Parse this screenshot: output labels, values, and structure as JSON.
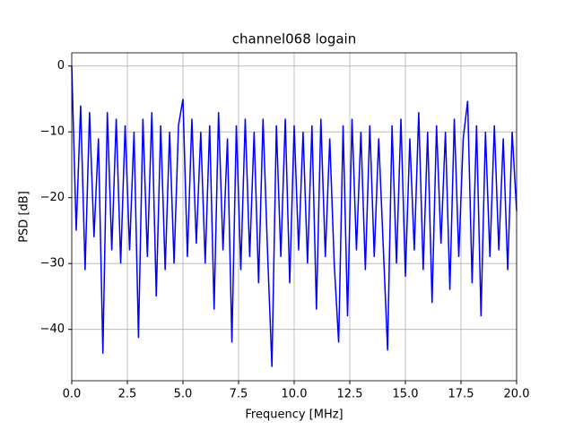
{
  "chart_data": {
    "type": "line",
    "title": "channel068 logain",
    "x_label": "Frequency [MHz]",
    "y_label": "PSD [dB]",
    "xlim": [
      0,
      20
    ],
    "ylim": [
      -47.8,
      2.0
    ],
    "xticks": [
      {
        "value": 0,
        "label": "0.0"
      },
      2.5,
      {
        "value": 5,
        "label": "5.0"
      },
      7.5,
      {
        "value": 10,
        "label": "10.0"
      },
      12.5,
      {
        "value": 15,
        "label": "15.0"
      },
      17.5,
      {
        "value": 20,
        "label": "20.0"
      }
    ],
    "yticks": [
      {
        "value": 0,
        "label": "0"
      },
      {
        "value": -10,
        "label": "−10"
      },
      {
        "value": -20,
        "label": "−20"
      },
      {
        "value": -30,
        "label": "−30"
      },
      {
        "value": -40,
        "label": "−40"
      }
    ],
    "grid": true,
    "series": [
      {
        "color": "#0000ff",
        "x": [
          0,
          0.2,
          0.4,
          0.6,
          0.8,
          1.0,
          1.2,
          1.4,
          1.6,
          1.8,
          2.0,
          2.2,
          2.4,
          2.6,
          2.8,
          3.0,
          3.2,
          3.4,
          3.6,
          3.8,
          4.0,
          4.2,
          4.4,
          4.6,
          4.8,
          5.0,
          5.2,
          5.4,
          5.6,
          5.8,
          6.0,
          6.2,
          6.4,
          6.6,
          6.8,
          7.0,
          7.2,
          7.4,
          7.6,
          7.8,
          8.0,
          8.2,
          8.4,
          8.6,
          8.8,
          9.0,
          9.2,
          9.4,
          9.6,
          9.8,
          10.0,
          10.2,
          10.4,
          10.6,
          10.8,
          11.0,
          11.2,
          11.4,
          11.6,
          11.8,
          12.0,
          12.2,
          12.4,
          12.6,
          12.8,
          13.0,
          13.2,
          13.4,
          13.6,
          13.8,
          14.0,
          14.2,
          14.4,
          14.6,
          14.8,
          15.0,
          15.2,
          15.4,
          15.6,
          15.8,
          16.0,
          16.2,
          16.4,
          16.6,
          16.8,
          17.0,
          17.2,
          17.4,
          17.6,
          17.8,
          18.0,
          18.2,
          18.4,
          18.6,
          18.8,
          19.0,
          19.2,
          19.4,
          19.6,
          19.8,
          20.0
        ],
        "values": [
          0,
          -25,
          -6,
          -31,
          -7,
          -26,
          -11,
          -43.7,
          -7,
          -28,
          -8,
          -30,
          -9,
          -28,
          -10,
          -41.3,
          -8,
          -29,
          -7,
          -35,
          -9,
          -31,
          -10,
          -30,
          -9,
          -5,
          -29,
          -8,
          -27,
          -10,
          -30,
          -9,
          -37,
          -7,
          -28,
          -11,
          -42,
          -9,
          -31,
          -8,
          -29,
          -10,
          -33,
          -8,
          -28,
          -45.7,
          -9,
          -29,
          -8,
          -33,
          -9,
          -28,
          -10,
          -30,
          -9,
          -37,
          -8,
          -29,
          -11,
          -30,
          -42,
          -9,
          -38,
          -8,
          -28,
          -10,
          -31,
          -9,
          -29,
          -11,
          -27,
          -43.2,
          -9,
          -30,
          -8,
          -32,
          -11,
          -28,
          -7,
          -31,
          -10,
          -36,
          -9,
          -27,
          -10,
          -34,
          -8,
          -29,
          -11,
          -5.3,
          -33,
          -9,
          -38,
          -10,
          -29,
          -9,
          -28,
          -11,
          -31,
          -10,
          -22
        ]
      }
    ]
  }
}
